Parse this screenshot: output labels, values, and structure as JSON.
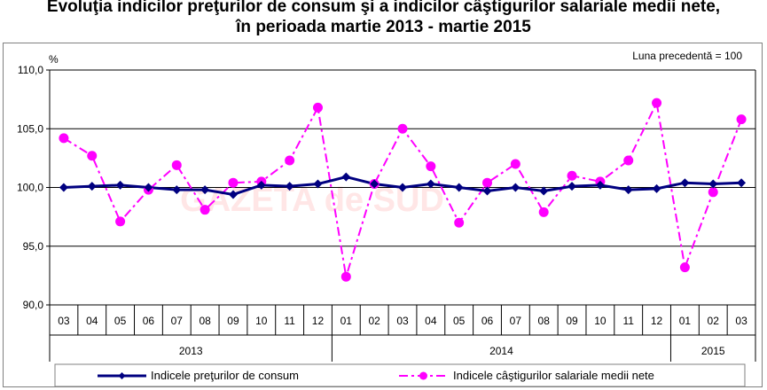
{
  "title_line1": "Evoluţia indicilor preţurilor de consum şi a indicilor câştigurilor salariale medii nete,",
  "title_line2": "în perioada martie 2013 - martie 2015",
  "watermark": "GAZETA de SUD",
  "colors": {
    "cpi": "#000080",
    "wages": "#ff00ff",
    "grid": "#000000"
  },
  "chart_data": {
    "type": "line",
    "ylabel": "%",
    "note": "Luna precedentă = 100",
    "ylim": [
      90,
      110
    ],
    "yticks": [
      "90,0",
      "95,0",
      "100,0",
      "105,0",
      "110,0"
    ],
    "ytick_values": [
      90,
      95,
      100,
      105,
      110
    ],
    "grid": "horizontal",
    "categories": [
      "03",
      "04",
      "05",
      "06",
      "07",
      "08",
      "09",
      "10",
      "11",
      "12",
      "01",
      "02",
      "03",
      "04",
      "05",
      "06",
      "07",
      "08",
      "09",
      "10",
      "11",
      "12",
      "01",
      "02",
      "03"
    ],
    "years": [
      {
        "label": "2013",
        "start": 0,
        "end": 9
      },
      {
        "label": "2014",
        "start": 10,
        "end": 21
      },
      {
        "label": "2015",
        "start": 22,
        "end": 24
      }
    ],
    "series": [
      {
        "name": "Indicele preţurilor de consum",
        "values": [
          100.0,
          100.1,
          100.2,
          100.0,
          99.8,
          99.8,
          99.4,
          100.2,
          100.1,
          100.3,
          100.9,
          100.3,
          100.0,
          100.3,
          100.0,
          99.7,
          100.0,
          99.7,
          100.1,
          100.2,
          99.8,
          99.9,
          100.4,
          100.3,
          100.4
        ]
      },
      {
        "name": "Indicele câştigurilor salariale medii nete",
        "values": [
          104.2,
          102.7,
          97.1,
          99.8,
          101.9,
          98.1,
          100.4,
          100.5,
          102.3,
          106.8,
          92.4,
          100.3,
          105.0,
          101.8,
          97.0,
          100.4,
          102.0,
          97.9,
          101.0,
          100.5,
          102.3,
          107.2,
          93.2,
          99.6,
          105.8
        ]
      }
    ],
    "legend_position": "bottom"
  }
}
